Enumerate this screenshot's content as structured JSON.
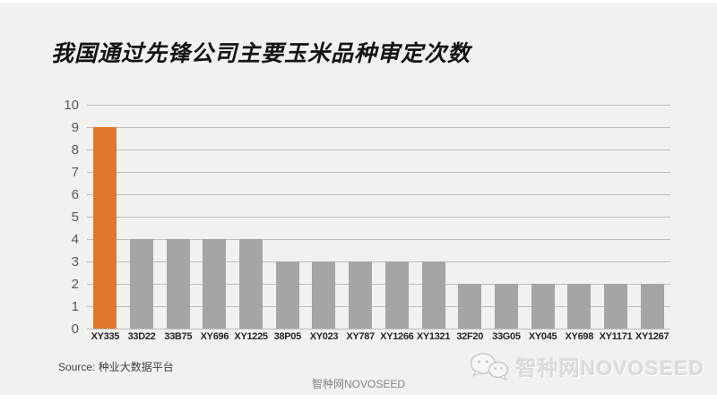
{
  "page": {
    "title": "我国通过先锋公司主要玉米品种审定次数",
    "source": "Source: 种业大数据平台",
    "footer_watermark": "智种网NOVOSEED",
    "brand_watermark": "智种网NOVOSEED"
  },
  "colors": {
    "page_frame": "#FFFFFF",
    "canvas_background": "#F1F1EF",
    "highlight_bar": "#E2762B",
    "default_bar": "#A5A5A5",
    "gridline": "#BDBDBB",
    "y_axis_text": "#595959",
    "x_axis_text": "#262626",
    "watermark_icon": "#C9C9C7"
  },
  "chart_data": {
    "type": "bar",
    "title": "我国通过先锋公司主要玉米品种审定次数",
    "categories": [
      "XY335",
      "33D22",
      "33B75",
      "XY696",
      "XY1225",
      "38P05",
      "XY023",
      "XY787",
      "XY1266",
      "XY1321",
      "32F20",
      "33G05",
      "XY045",
      "XY698",
      "XY1171",
      "XY1267"
    ],
    "values": [
      9,
      4,
      4,
      4,
      4,
      3,
      3,
      3,
      3,
      3,
      2,
      2,
      2,
      2,
      2,
      2
    ],
    "highlight_index": 0,
    "xlabel": "",
    "ylabel": "",
    "ylim": [
      0,
      10
    ],
    "ytick_step": 1,
    "grid": true,
    "legend": false
  }
}
